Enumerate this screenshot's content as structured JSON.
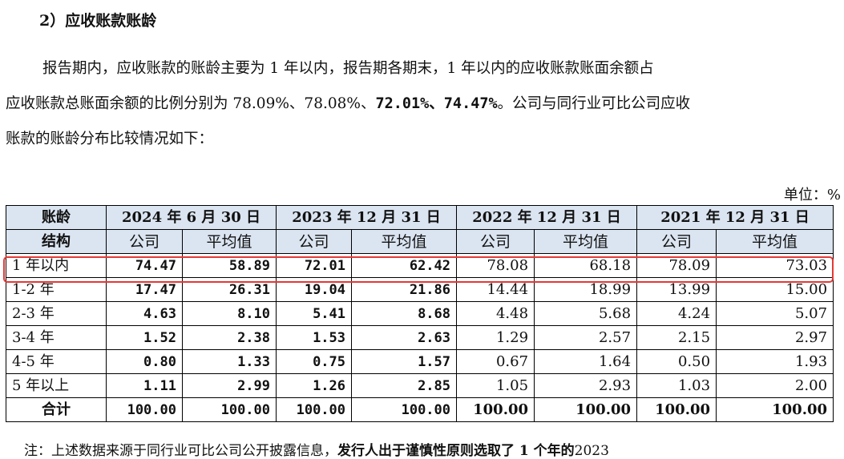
{
  "heading": "2）应收账款账龄",
  "paragraph": {
    "line1": "报告期内，应收账款的账龄主要为 1 年以内，报告期各期末，1 年以内的应收账款账面余额占",
    "line2_a": "应收账款总账面余额的比例分别为 78.09%、78.08%、",
    "line2_b": "72.01%、74.47%",
    "line2_c": "。公司与同行业可比公司应收",
    "line3": "账款的账龄分布比较情况如下："
  },
  "unit": "单位：%",
  "table": {
    "corner": [
      "账龄",
      "结构"
    ],
    "periods": [
      "2024 年 6 月 30 日",
      "2023 年 12 月 31 日",
      "2022 年 12 月 31 日",
      "2021 年 12 月 31 日"
    ],
    "sub": {
      "company": "公司",
      "average": "平均值"
    },
    "rows": [
      {
        "label": "1 年以内",
        "c24": "74.47",
        "a24": "58.89",
        "c23": "72.01",
        "a23": "62.42",
        "c22": "78.08",
        "a22": "68.18",
        "c21": "78.09",
        "a21": "73.03"
      },
      {
        "label": "1-2 年",
        "c24": "17.47",
        "a24": "26.31",
        "c23": "19.04",
        "a23": "21.86",
        "c22": "14.44",
        "a22": "18.99",
        "c21": "13.99",
        "a21": "15.00"
      },
      {
        "label": "2-3 年",
        "c24": "4.63",
        "a24": "8.10",
        "c23": "5.41",
        "a23": "8.68",
        "c22": "4.48",
        "a22": "5.68",
        "c21": "4.24",
        "a21": "5.07"
      },
      {
        "label": "3-4 年",
        "c24": "1.52",
        "a24": "2.38",
        "c23": "1.53",
        "a23": "2.63",
        "c22": "1.29",
        "a22": "2.57",
        "c21": "2.15",
        "a21": "2.97"
      },
      {
        "label": "4-5 年",
        "c24": "0.80",
        "a24": "1.33",
        "c23": "0.75",
        "a23": "1.57",
        "c22": "0.67",
        "a22": "1.64",
        "c21": "0.50",
        "a21": "1.93"
      },
      {
        "label": "5 年以上",
        "c24": "1.11",
        "a24": "2.99",
        "c23": "1.26",
        "a23": "2.85",
        "c22": "1.05",
        "a22": "2.93",
        "c21": "1.03",
        "a21": "2.00"
      },
      {
        "label": "合计",
        "c24": "100.00",
        "a24": "100.00",
        "c23": "100.00",
        "a23": "100.00",
        "c22": "100.00",
        "a22": "100.00",
        "c21": "100.00",
        "a21": "100.00"
      }
    ]
  },
  "note": {
    "text": "注：上述数据来源于同行业可比公司公开披露信息，",
    "bold": "发行人出于谨慎性原则选取了 1 个年的",
    "tail": "2023"
  },
  "colors": {
    "header_bg": "#dbe5f1",
    "highlight_border": "#e53935"
  }
}
